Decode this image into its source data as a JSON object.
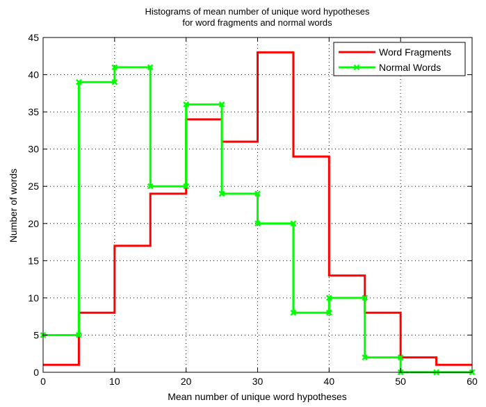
{
  "chart_data": {
    "type": "line",
    "title": [
      "Histograms of mean number of unique word hypotheses",
      "for word fragments and normal words"
    ],
    "xlabel": "Mean number of unique word hypotheses",
    "ylabel": "Number of words",
    "xlim": [
      0,
      60
    ],
    "ylim": [
      0,
      45
    ],
    "xticks": [
      0,
      10,
      20,
      30,
      40,
      50,
      60
    ],
    "yticks": [
      0,
      5,
      10,
      15,
      20,
      25,
      30,
      35,
      40,
      45
    ],
    "grid": true,
    "legend_position": "top-right",
    "bin_edges": [
      0,
      5,
      10,
      15,
      20,
      25,
      30,
      35,
      40,
      45,
      50,
      55,
      60
    ],
    "series": [
      {
        "name": "Word Fragments",
        "color": "#ff0000",
        "marker": "none",
        "values": [
          1,
          8,
          17,
          24,
          34,
          31,
          43,
          29,
          13,
          8,
          2,
          1
        ]
      },
      {
        "name": "Normal Words",
        "color": "#00ff00",
        "marker": "x",
        "values": [
          5,
          39,
          41,
          25,
          36,
          24,
          20,
          8,
          10,
          2,
          0,
          0
        ]
      }
    ]
  }
}
